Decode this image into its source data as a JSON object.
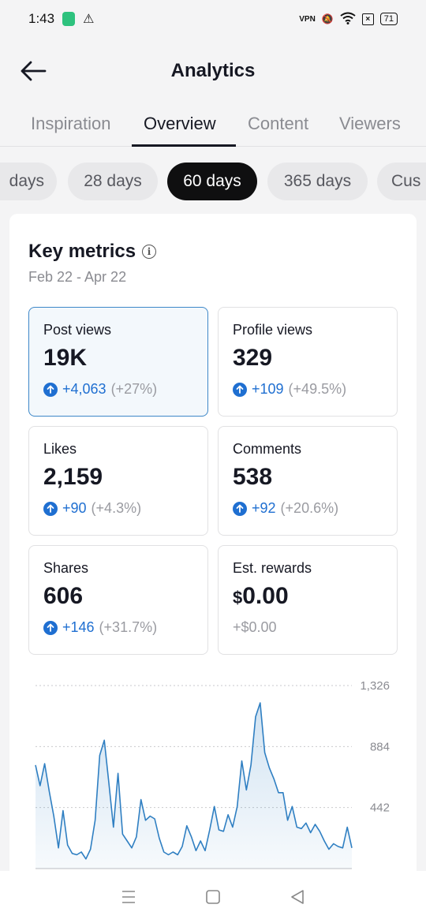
{
  "status": {
    "time": "1:43",
    "vpn": "VPN",
    "battery": "71"
  },
  "header": {
    "title": "Analytics"
  },
  "tabs": [
    {
      "label": "Inspiration"
    },
    {
      "label": "Overview"
    },
    {
      "label": "Content"
    },
    {
      "label": "Viewers"
    }
  ],
  "chips": [
    {
      "label": "days"
    },
    {
      "label": "28 days"
    },
    {
      "label": "60 days"
    },
    {
      "label": "365 days"
    },
    {
      "label": "Cus"
    }
  ],
  "key_metrics": {
    "title": "Key metrics",
    "date_range": "Feb 22 - Apr 22",
    "metrics": [
      {
        "label": "Post views",
        "value": "19K",
        "delta": "+4,063",
        "pct": "(+27%)"
      },
      {
        "label": "Profile views",
        "value": "329",
        "delta": "+109",
        "pct": "(+49.5%)"
      },
      {
        "label": "Likes",
        "value": "2,159",
        "delta": "+90",
        "pct": "(+4.3%)"
      },
      {
        "label": "Comments",
        "value": "538",
        "delta": "+92",
        "pct": "(+20.6%)"
      },
      {
        "label": "Shares",
        "value": "606",
        "delta": "+146",
        "pct": "(+31.7%)"
      },
      {
        "label": "Est. rewards",
        "currency": "$",
        "value": "0.00",
        "plain": "+$0.00"
      }
    ]
  },
  "chart_data": {
    "type": "area",
    "ylim": [
      0,
      1326
    ],
    "yticks": [
      "1,326",
      "884",
      "442"
    ],
    "ytick_values": [
      1326,
      884,
      442
    ],
    "values": [
      750,
      600,
      760,
      560,
      380,
      150,
      420,
      170,
      110,
      100,
      120,
      70,
      140,
      350,
      820,
      930,
      620,
      300,
      690,
      250,
      200,
      150,
      230,
      500,
      350,
      380,
      360,
      220,
      120,
      100,
      120,
      100,
      160,
      310,
      230,
      130,
      200,
      130,
      280,
      450,
      280,
      270,
      390,
      300,
      450,
      780,
      570,
      750,
      1100,
      1200,
      840,
      730,
      650,
      550,
      550,
      350,
      450,
      300,
      290,
      330,
      260,
      320,
      270,
      200,
      140,
      180,
      160,
      150,
      300,
      150
    ],
    "accent": "#1f6fd1",
    "line_color": "#2f7fc2"
  }
}
